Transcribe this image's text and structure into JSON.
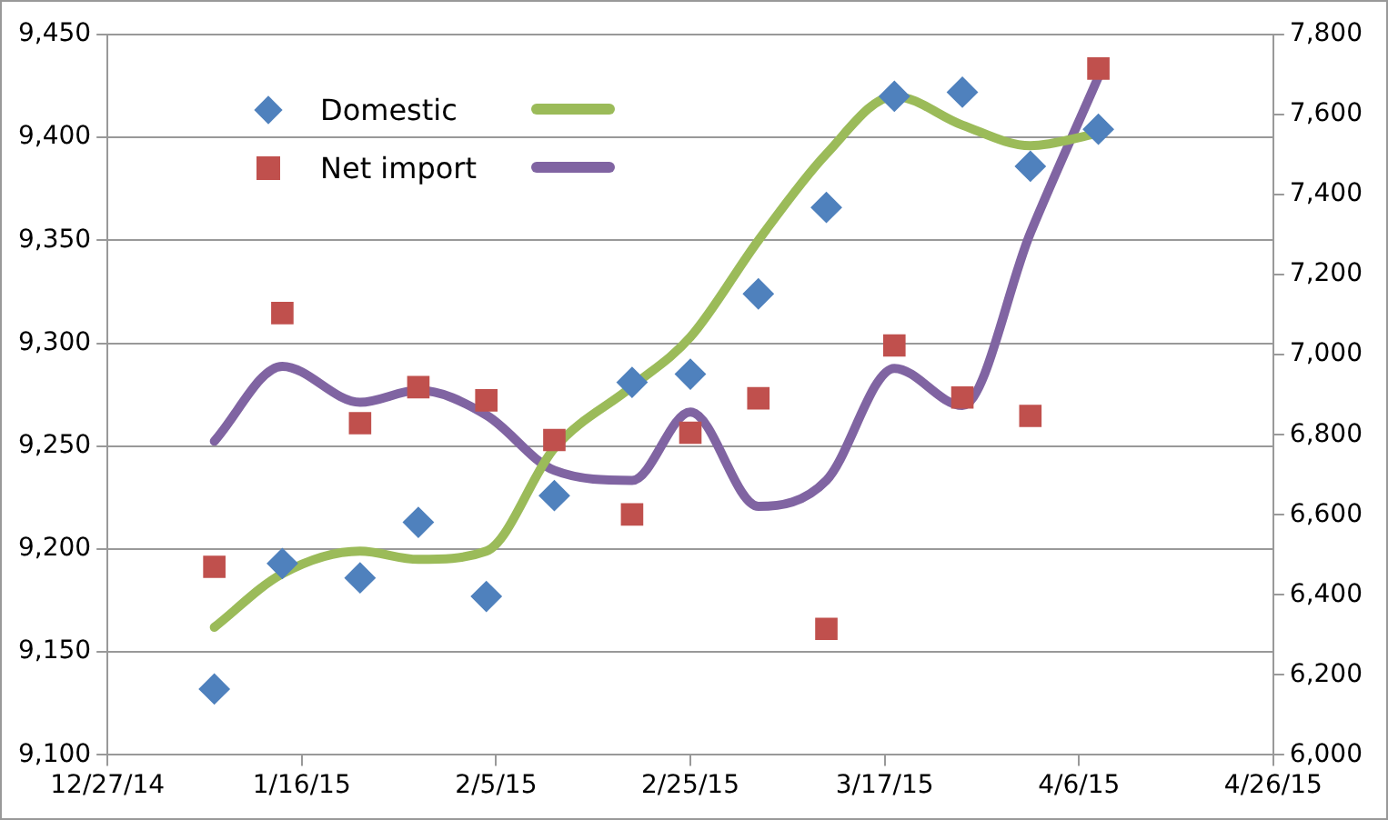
{
  "chart_data": {
    "type": "scatter",
    "x": [
      "2015-01-07",
      "2015-01-14",
      "2015-01-22",
      "2015-01-28",
      "2015-02-04",
      "2015-02-11",
      "2015-02-19",
      "2015-02-25",
      "2015-03-04",
      "2015-03-11",
      "2015-03-18",
      "2015-03-25",
      "2015-04-01",
      "2015-04-08"
    ],
    "series": [
      {
        "name": "Domestic",
        "marker": "diamond",
        "color": "#4f81bd",
        "values": [
          9132,
          9193,
          9186,
          9213,
          9177,
          9226,
          9281,
          9285,
          9324,
          9366,
          9420,
          9422,
          9386,
          9404
        ]
      },
      {
        "name": "Net import",
        "marker": "square",
        "axis": "y2",
        "color": "#c0504d",
        "values": [
          6470,
          7104,
          6829,
          6919,
          6886,
          6787,
          6601,
          6805,
          6891,
          6315,
          7023,
          6893,
          6847,
          7715
        ]
      },
      {
        "type": "line",
        "marker": "none",
        "color": "#9bbb59",
        "values": [
          9162,
          9188,
          9199,
          9195,
          9199,
          9249,
          9279,
          9303,
          9350,
          9392,
          9420,
          9406,
          9396,
          9402
        ]
      },
      {
        "type": "line",
        "marker": "none",
        "axis": "y2",
        "color": "#8064a2",
        "values": [
          6784,
          6971,
          6881,
          6911,
          6849,
          6711,
          6686,
          6857,
          6621,
          6686,
          6966,
          6873,
          7304,
          7694
        ]
      }
    ],
    "xlim": [
      "2014-12-27",
      "2015-04-26"
    ],
    "xticks": [
      {
        "value": "2014-12-27",
        "label": "12/27/14"
      },
      {
        "value": "2015-01-16",
        "label": "1/16/15"
      },
      {
        "value": "2015-02-05",
        "label": "2/5/15"
      },
      {
        "value": "2015-02-25",
        "label": "2/25/15"
      },
      {
        "value": "2015-03-17",
        "label": "3/17/15"
      },
      {
        "value": "2015-04-06",
        "label": "4/6/15"
      },
      {
        "value": "2015-04-26",
        "label": "4/26/15"
      }
    ],
    "ylim": [
      9100,
      9450
    ],
    "yticks": [
      {
        "value": 9100,
        "label": "9,100"
      },
      {
        "value": 9150,
        "label": "9,150"
      },
      {
        "value": 9200,
        "label": "9,200"
      },
      {
        "value": 9250,
        "label": "9,250"
      },
      {
        "value": 9300,
        "label": "9,300"
      },
      {
        "value": 9350,
        "label": "9,350"
      },
      {
        "value": 9400,
        "label": "9,400"
      },
      {
        "value": 9450,
        "label": "9,450"
      }
    ],
    "y2lim": [
      6000,
      7800
    ],
    "y2ticks": [
      {
        "value": 6000,
        "label": "6,000"
      },
      {
        "value": 6200,
        "label": "6,200"
      },
      {
        "value": 6400,
        "label": "6,400"
      },
      {
        "value": 6600,
        "label": "6,600"
      },
      {
        "value": 6800,
        "label": "6,800"
      },
      {
        "value": 7000,
        "label": "7,000"
      },
      {
        "value": 7200,
        "label": "7,200"
      },
      {
        "value": 7400,
        "label": "7,400"
      },
      {
        "value": 7600,
        "label": "7,600"
      },
      {
        "value": 7800,
        "label": "7,800"
      }
    ],
    "grid": "y",
    "legend": "top left"
  }
}
